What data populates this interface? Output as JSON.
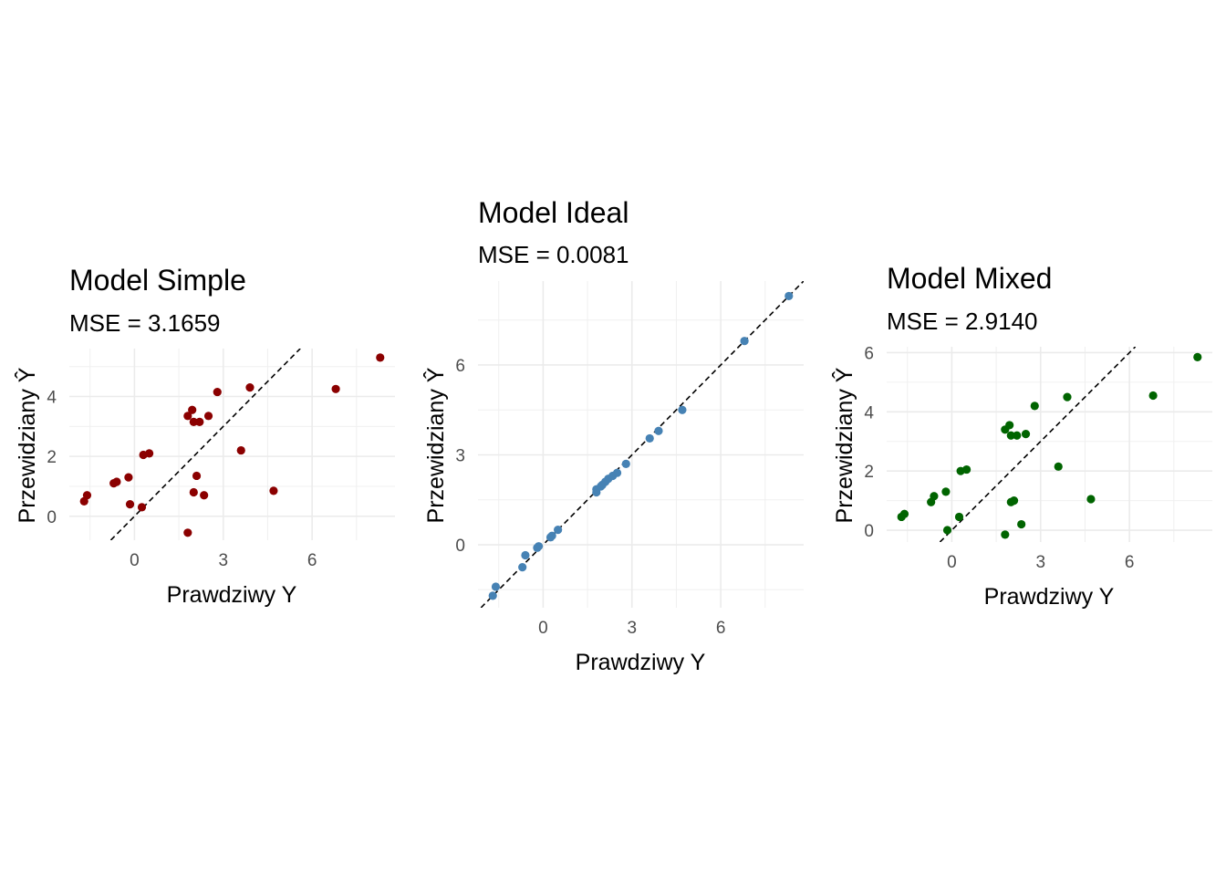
{
  "chart_data": [
    {
      "type": "scatter",
      "title": "Model Simple",
      "subtitle": "MSE = 3.1659",
      "xlabel": "Prawdziwy Y",
      "ylabel": "Przewidziany Ŷ",
      "color": "#8B0000",
      "xlim": [
        -2.2,
        8.8
      ],
      "ylim": [
        -0.8,
        5.6
      ],
      "xticks": [
        0,
        3,
        6
      ],
      "yticks": [
        0,
        2,
        4
      ],
      "grid": true,
      "reference_line": "y = x",
      "points": [
        {
          "x": -1.7,
          "y": 0.5
        },
        {
          "x": -1.6,
          "y": 0.7
        },
        {
          "x": -0.7,
          "y": 1.1
        },
        {
          "x": -0.6,
          "y": 1.15
        },
        {
          "x": -0.2,
          "y": 1.3
        },
        {
          "x": -0.15,
          "y": 0.4
        },
        {
          "x": 0.25,
          "y": 0.3
        },
        {
          "x": 0.3,
          "y": 2.05
        },
        {
          "x": 0.5,
          "y": 2.1
        },
        {
          "x": 1.8,
          "y": -0.55
        },
        {
          "x": 1.8,
          "y": 3.35
        },
        {
          "x": 1.95,
          "y": 3.55
        },
        {
          "x": 2.0,
          "y": 3.15
        },
        {
          "x": 2.0,
          "y": 0.8
        },
        {
          "x": 2.1,
          "y": 1.35
        },
        {
          "x": 2.2,
          "y": 3.15
        },
        {
          "x": 2.35,
          "y": 0.7
        },
        {
          "x": 2.5,
          "y": 3.35
        },
        {
          "x": 2.8,
          "y": 4.15
        },
        {
          "x": 3.6,
          "y": 2.2
        },
        {
          "x": 3.9,
          "y": 4.3
        },
        {
          "x": 4.7,
          "y": 0.85
        },
        {
          "x": 6.8,
          "y": 4.25
        },
        {
          "x": 8.3,
          "y": 5.3
        }
      ]
    },
    {
      "type": "scatter",
      "title": "Model Ideal",
      "subtitle": "MSE = 0.0081",
      "xlabel": "Prawdziwy Y",
      "ylabel": "Przewidziany Ŷ",
      "color": "#4682B4",
      "xlim": [
        -2.2,
        8.8
      ],
      "ylim": [
        -2.1,
        8.8
      ],
      "xticks": [
        0,
        3,
        6
      ],
      "yticks": [
        0,
        3,
        6
      ],
      "grid": true,
      "reference_line": "y = x",
      "points": [
        {
          "x": -1.7,
          "y": -1.7
        },
        {
          "x": -1.6,
          "y": -1.4
        },
        {
          "x": -0.7,
          "y": -0.75
        },
        {
          "x": -0.6,
          "y": -0.35
        },
        {
          "x": -0.2,
          "y": -0.1
        },
        {
          "x": -0.15,
          "y": -0.05
        },
        {
          "x": 0.25,
          "y": 0.25
        },
        {
          "x": 0.3,
          "y": 0.3
        },
        {
          "x": 0.5,
          "y": 0.5
        },
        {
          "x": 1.8,
          "y": 1.75
        },
        {
          "x": 1.8,
          "y": 1.85
        },
        {
          "x": 1.95,
          "y": 1.95
        },
        {
          "x": 2.0,
          "y": 2.0
        },
        {
          "x": 2.1,
          "y": 2.1
        },
        {
          "x": 2.2,
          "y": 2.2
        },
        {
          "x": 2.35,
          "y": 2.3
        },
        {
          "x": 2.5,
          "y": 2.4
        },
        {
          "x": 2.8,
          "y": 2.7
        },
        {
          "x": 3.6,
          "y": 3.55
        },
        {
          "x": 3.9,
          "y": 3.8
        },
        {
          "x": 4.7,
          "y": 4.5
        },
        {
          "x": 6.8,
          "y": 6.8
        },
        {
          "x": 8.3,
          "y": 8.3
        }
      ]
    },
    {
      "type": "scatter",
      "title": "Model Mixed",
      "subtitle": "MSE = 2.9140",
      "xlabel": "Prawdziwy Y",
      "ylabel": "Przewidziany Ŷ",
      "color": "#006400",
      "xlim": [
        -2.2,
        8.8
      ],
      "ylim": [
        -0.4,
        6.2
      ],
      "xticks": [
        0,
        3,
        6
      ],
      "yticks": [
        0,
        2,
        4,
        6
      ],
      "grid": true,
      "reference_line": "y = x",
      "points": [
        {
          "x": -1.7,
          "y": 0.45
        },
        {
          "x": -1.6,
          "y": 0.55
        },
        {
          "x": -0.7,
          "y": 0.95
        },
        {
          "x": -0.6,
          "y": 1.15
        },
        {
          "x": -0.2,
          "y": 1.3
        },
        {
          "x": -0.15,
          "y": 0.0
        },
        {
          "x": 0.25,
          "y": 0.45
        },
        {
          "x": 0.3,
          "y": 2.0
        },
        {
          "x": 0.5,
          "y": 2.05
        },
        {
          "x": 1.8,
          "y": -0.15
        },
        {
          "x": 1.8,
          "y": 3.4
        },
        {
          "x": 1.95,
          "y": 3.55
        },
        {
          "x": 2.0,
          "y": 3.2
        },
        {
          "x": 2.0,
          "y": 0.95
        },
        {
          "x": 2.1,
          "y": 1.0
        },
        {
          "x": 2.2,
          "y": 3.2
        },
        {
          "x": 2.35,
          "y": 0.2
        },
        {
          "x": 2.5,
          "y": 3.25
        },
        {
          "x": 2.8,
          "y": 4.2
        },
        {
          "x": 3.6,
          "y": 2.15
        },
        {
          "x": 3.9,
          "y": 4.5
        },
        {
          "x": 4.7,
          "y": 1.05
        },
        {
          "x": 6.8,
          "y": 4.55
        },
        {
          "x": 8.3,
          "y": 5.85
        }
      ]
    }
  ]
}
